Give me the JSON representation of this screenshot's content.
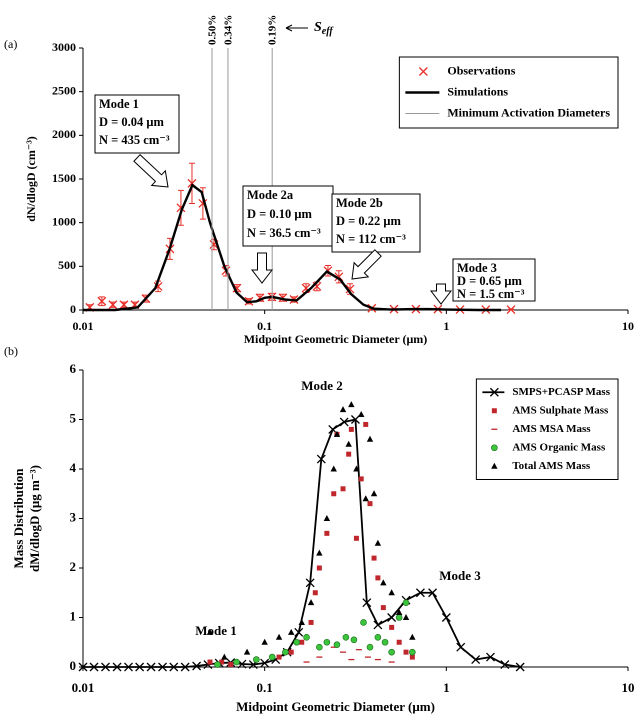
{
  "chart_data": [
    {
      "type": "line",
      "panel_label": "(a)",
      "xlabel": "Midpoint Geometric Diameter (μm)",
      "ylabel": "dN/dlogD (cm⁻³)",
      "xscale": "log",
      "xlim": [
        0.01,
        10
      ],
      "xticks": [
        0.01,
        0.1,
        1,
        10
      ],
      "ylim": [
        0,
        3000
      ],
      "yticks": [
        0,
        500,
        1000,
        1500,
        2000,
        2500,
        3000
      ],
      "legend": "top-right",
      "series": [
        {
          "name": "Observations",
          "type": "scatter",
          "marker": "x",
          "color": "#e8302a",
          "x": [
            0.0109,
            0.0127,
            0.0146,
            0.0168,
            0.0193,
            0.0222,
            0.0259,
            0.0301,
            0.0346,
            0.0398,
            0.0457,
            0.0526,
            0.0612,
            0.0704,
            0.0819,
            0.0942,
            0.1097,
            0.126,
            0.145,
            0.169,
            0.194,
            0.223,
            0.256,
            0.295,
            0.389,
            0.515,
            0.68,
            0.899,
            1.19,
            1.65,
            2.27
          ],
          "values": [
            30,
            100,
            60,
            60,
            60,
            130,
            270,
            700,
            1170,
            1450,
            1220,
            750,
            450,
            250,
            100,
            140,
            150,
            140,
            120,
            250,
            270,
            450,
            380,
            240,
            20,
            10,
            10,
            10,
            5,
            5,
            5
          ],
          "errors": [
            30,
            50,
            30,
            30,
            30,
            40,
            60,
            120,
            200,
            230,
            180,
            60,
            60,
            40,
            30,
            40,
            40,
            40,
            30,
            50,
            50,
            60,
            70,
            60,
            5,
            5,
            5,
            5,
            5,
            5,
            5
          ]
        },
        {
          "name": "Simulations",
          "type": "line",
          "color": "#000000",
          "x": [
            0.01,
            0.015,
            0.02,
            0.025,
            0.03,
            0.035,
            0.04,
            0.045,
            0.05,
            0.06,
            0.07,
            0.08,
            0.09,
            0.1,
            0.11,
            0.13,
            0.15,
            0.18,
            0.22,
            0.26,
            0.3,
            0.35,
            0.4,
            0.5,
            0.65,
            0.8,
            1,
            1.5,
            2
          ],
          "values": [
            0,
            0,
            30,
            250,
            700,
            1150,
            1430,
            1350,
            1000,
            500,
            200,
            90,
            100,
            140,
            150,
            120,
            110,
            250,
            440,
            350,
            180,
            60,
            15,
            5,
            10,
            10,
            5,
            0,
            0
          ]
        },
        {
          "name": "Minimum Activation Diameters",
          "type": "vline",
          "color": "#999999",
          "x": [
            0.0513,
            0.0628,
            0.11
          ],
          "supersaturation_labels": [
            "0.50%",
            "0.34%",
            "0.19%"
          ]
        }
      ],
      "seff": {
        "symbol": "S",
        "subscript": "eff"
      },
      "annotations": [
        {
          "lines": [
            "Mode 1",
            "D = 0.04 μm",
            "N = 435 cm⁻³"
          ]
        },
        {
          "lines": [
            "Mode 2a",
            "D = 0.10 μm",
            "N = 36.5 cm⁻³"
          ]
        },
        {
          "lines": [
            "Mode 2b",
            "D = 0.22 μm",
            "N = 112 cm⁻³"
          ]
        },
        {
          "lines": [
            "Mode 3",
            "D = 0.65 μm",
            "N = 1.5 cm⁻³"
          ]
        }
      ]
    },
    {
      "type": "line",
      "panel_label": "(b)",
      "xlabel": "Midpoint Geometric Diameter (μm)",
      "ylabel": [
        "Mass Distribution",
        "dM/dlogD (μg m⁻³)"
      ],
      "xscale": "log",
      "xlim": [
        0.01,
        10
      ],
      "xticks": [
        0.01,
        0.1,
        1,
        10
      ],
      "ylim": [
        0,
        6
      ],
      "yticks": [
        0,
        1,
        2,
        3,
        4,
        5,
        6
      ],
      "legend": "top-right",
      "series": [
        {
          "name": "SMPS+PCASP Mass",
          "type": "line",
          "marker": "x",
          "color": "#000000",
          "x": [
            0.01,
            0.0115,
            0.0133,
            0.0154,
            0.0178,
            0.0205,
            0.0237,
            0.0274,
            0.0316,
            0.0365,
            0.0422,
            0.0487,
            0.0562,
            0.065,
            0.075,
            0.0866,
            0.1,
            0.115,
            0.133,
            0.154,
            0.178,
            0.205,
            0.237,
            0.274,
            0.316,
            0.365,
            0.42,
            0.5,
            0.6,
            0.72,
            0.84,
            1.0,
            1.2,
            1.45,
            1.75,
            2.1,
            2.55
          ],
          "values": [
            0,
            0,
            0,
            0,
            0,
            0,
            0,
            0,
            0,
            0,
            0.02,
            0.05,
            0.08,
            0.09,
            0.06,
            0.05,
            0.08,
            0.15,
            0.3,
            0.7,
            1.7,
            4.2,
            4.8,
            4.95,
            5.0,
            1.3,
            0.85,
            1.0,
            1.35,
            1.5,
            1.5,
            1.0,
            0.4,
            0.15,
            0.2,
            0.05,
            0
          ]
        },
        {
          "name": "AMS Sulphate Mass",
          "type": "scatter",
          "marker": "square",
          "color": "#c0272d",
          "x": [
            0.05,
            0.058,
            0.065,
            0.09,
            0.12,
            0.14,
            0.16,
            0.18,
            0.19,
            0.2,
            0.22,
            0.24,
            0.25,
            0.27,
            0.29,
            0.3,
            0.32,
            0.34,
            0.36,
            0.38,
            0.4,
            0.42,
            0.45,
            0.5,
            0.55,
            0.6,
            0.65
          ],
          "values": [
            0.1,
            0.1,
            0.05,
            0.15,
            0.2,
            0.3,
            0.5,
            0.9,
            1.5,
            2.0,
            2.7,
            3.5,
            4.7,
            3.6,
            4.3,
            4.8,
            2.6,
            3.8,
            4.9,
            3.3,
            2.2,
            1.8,
            1.2,
            0.8,
            0.5,
            0.3,
            0.2
          ]
        },
        {
          "name": "AMS MSA Mass",
          "type": "scatter",
          "marker": "dash",
          "color": "#c0272d",
          "x": [
            0.17,
            0.2,
            0.24,
            0.27,
            0.3,
            0.33,
            0.37,
            0.42,
            0.5
          ],
          "values": [
            0.1,
            0.2,
            0.4,
            0.3,
            0.15,
            0.35,
            0.2,
            0.15,
            0.1
          ]
        },
        {
          "name": "AMS Organic Mass",
          "type": "scatter",
          "marker": "circle",
          "color": "#3cc43c",
          "x": [
            0.055,
            0.07,
            0.09,
            0.11,
            0.13,
            0.15,
            0.17,
            0.2,
            0.22,
            0.25,
            0.28,
            0.31,
            0.35,
            0.38,
            0.42,
            0.46,
            0.5,
            0.55,
            0.6,
            0.65
          ],
          "values": [
            0.05,
            0.1,
            0.15,
            0.2,
            0.3,
            0.5,
            0.6,
            0.4,
            0.5,
            0.45,
            0.6,
            0.55,
            0.9,
            0.4,
            0.6,
            0.5,
            0.3,
            1.0,
            1.3,
            0.3
          ]
        },
        {
          "name": "Total AMS Mass",
          "type": "scatter",
          "marker": "triangle",
          "color": "#000000",
          "x": [
            0.05,
            0.06,
            0.08,
            0.1,
            0.12,
            0.14,
            0.16,
            0.18,
            0.2,
            0.22,
            0.24,
            0.25,
            0.27,
            0.29,
            0.3,
            0.32,
            0.34,
            0.36,
            0.38,
            0.4,
            0.42,
            0.45,
            0.5,
            0.55,
            0.6,
            0.65
          ],
          "values": [
            0.7,
            0.2,
            0.3,
            0.5,
            0.6,
            0.7,
            0.9,
            1.3,
            2.3,
            3.0,
            4.0,
            4.7,
            5.2,
            4.5,
            5.3,
            4.0,
            5.1,
            3.4,
            4.6,
            3.5,
            2.5,
            1.7,
            1.5,
            1.1,
            1.0,
            0.6
          ]
        }
      ],
      "annotations": [
        {
          "lines": [
            "Mode 1"
          ]
        },
        {
          "lines": [
            "Mode 2"
          ]
        },
        {
          "lines": [
            "Mode 3"
          ]
        }
      ]
    }
  ]
}
